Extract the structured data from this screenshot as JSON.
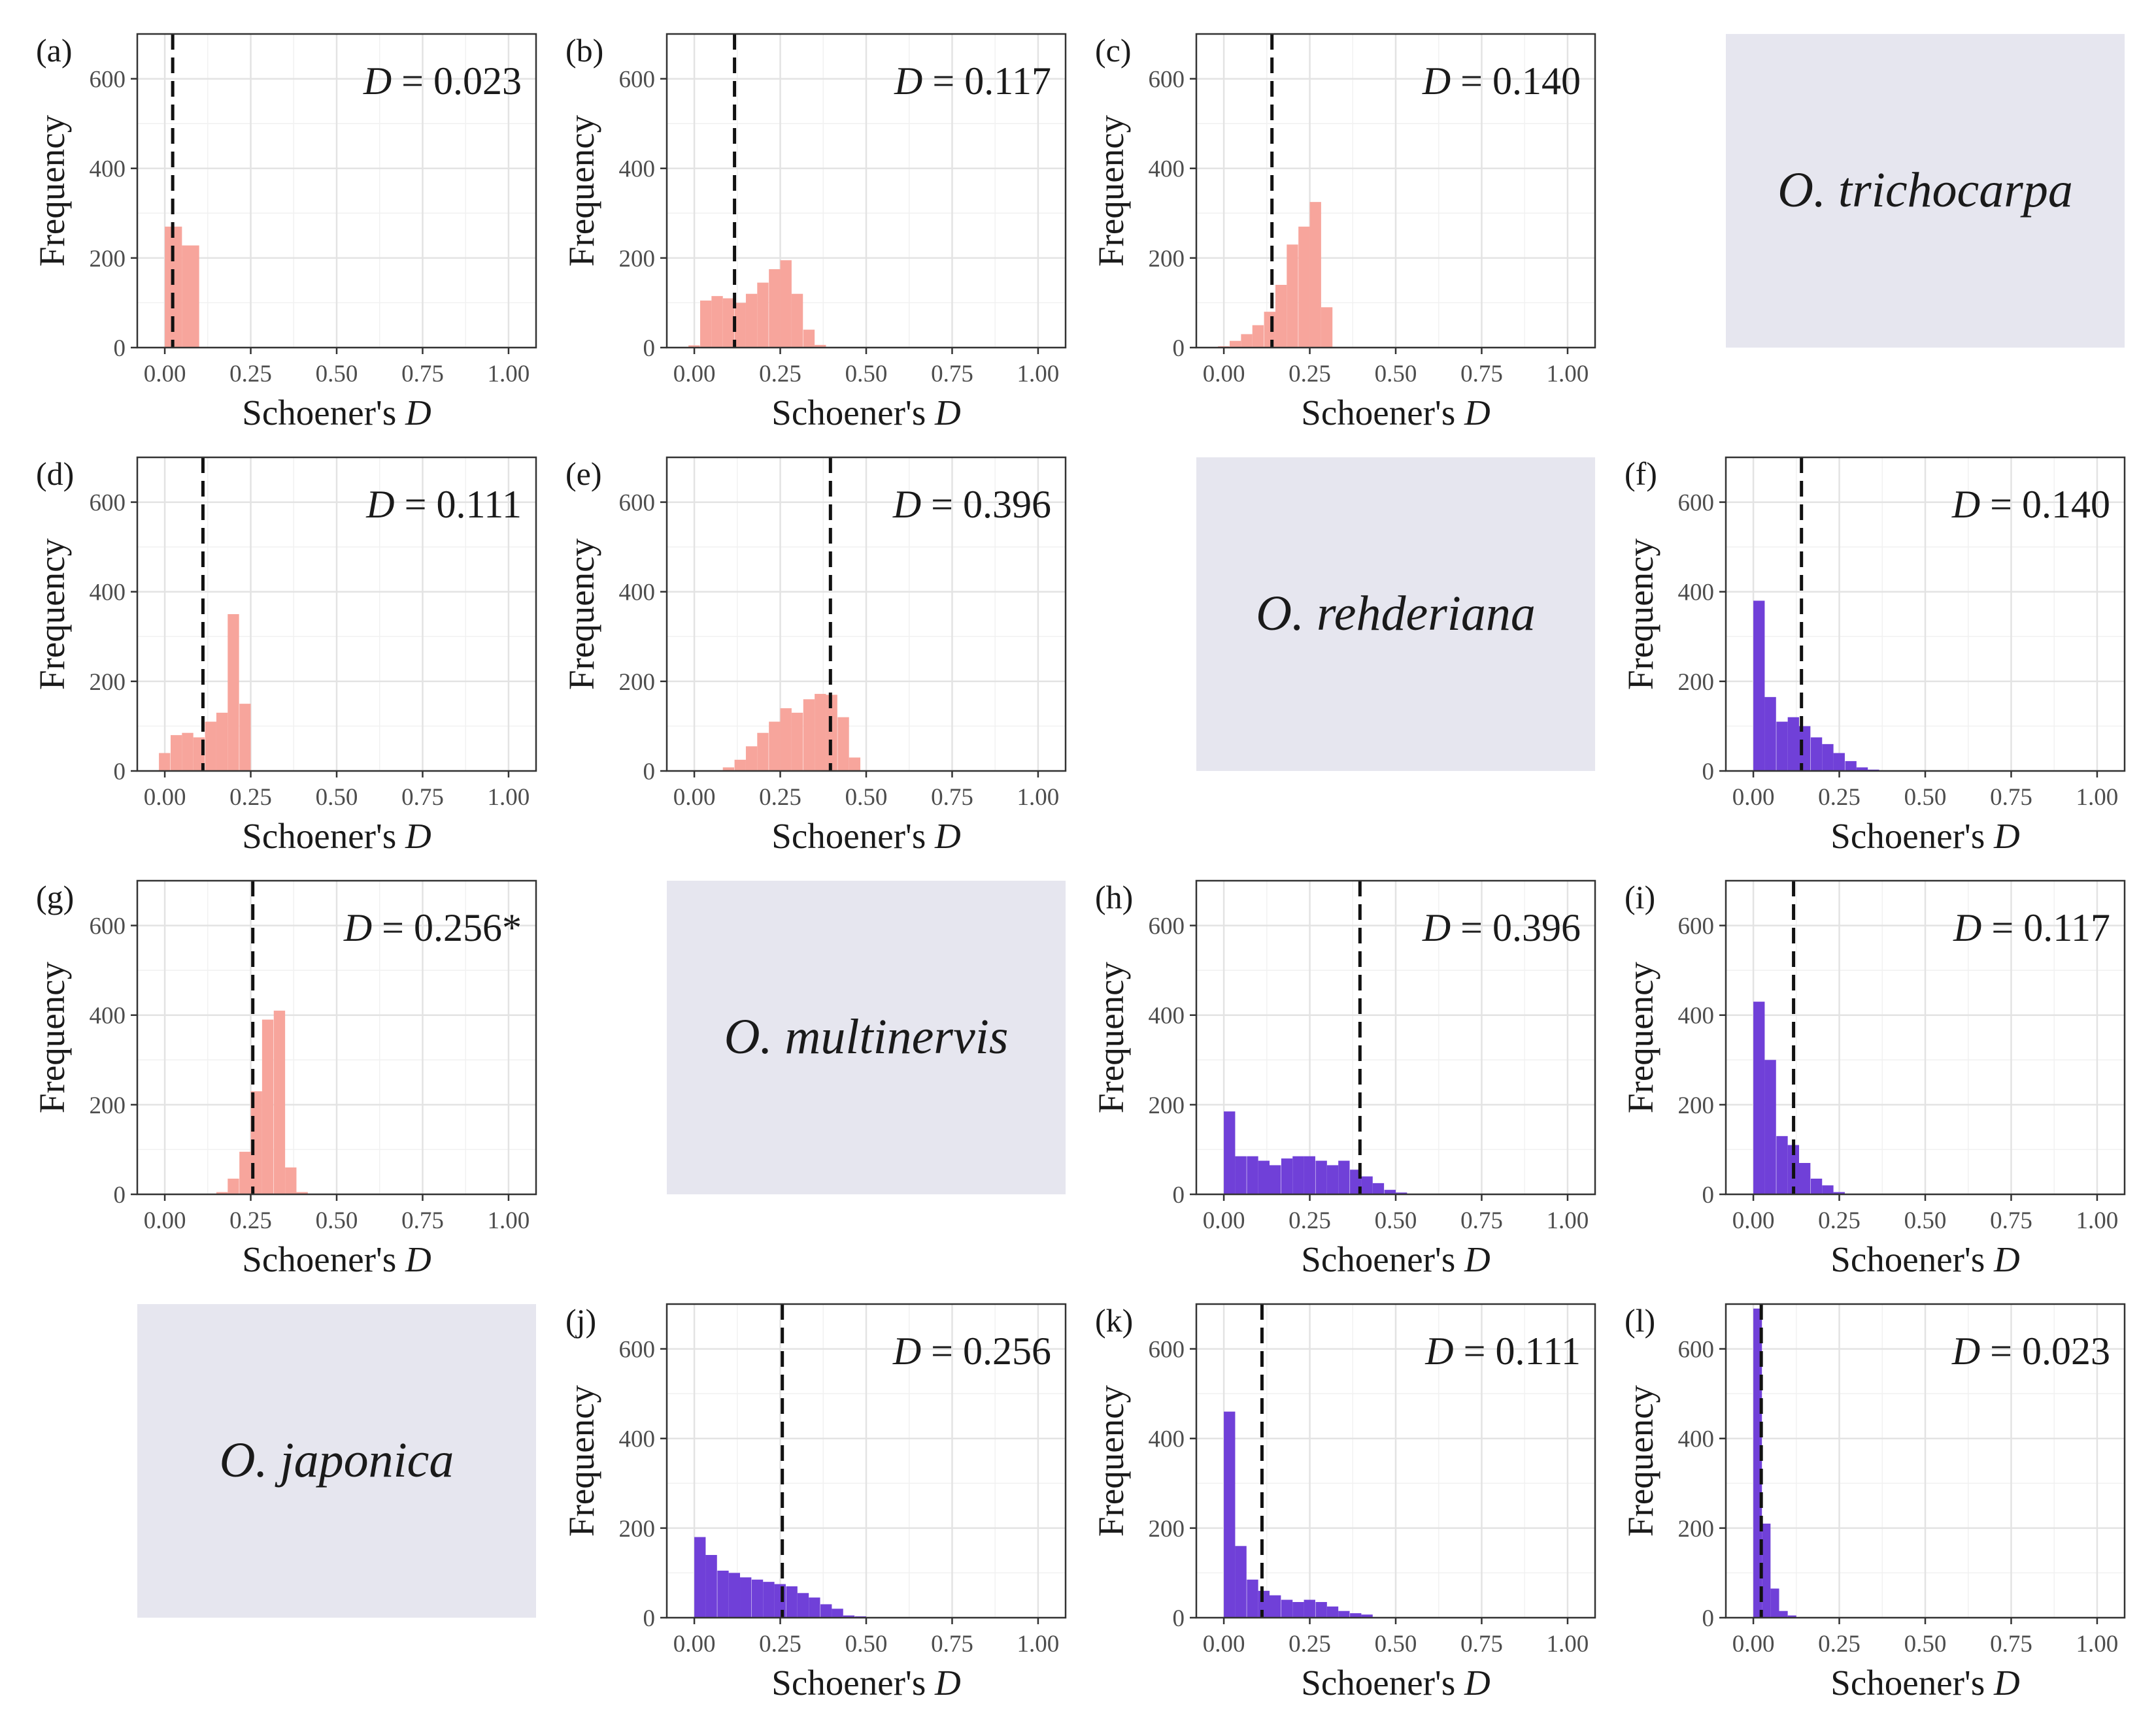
{
  "chart_data": {
    "type": "histogram",
    "layout": "4x4 matrix of pairwise panels; diagonal shows species names",
    "colors": {
      "pink": "#f7a59c",
      "purple": "#7040d8",
      "species_bg": "#e6e6ef"
    },
    "x_ticks": [
      "0.00",
      "0.25",
      "0.50",
      "0.75",
      "1.00"
    ],
    "y_ticks": [
      "0",
      "200",
      "400",
      "600"
    ],
    "xlim": [
      -0.08,
      1.08
    ],
    "ylim": [
      0,
      700
    ],
    "x_label": "Schoener's",
    "x_label_var": "D",
    "y_label": "Frequency",
    "species": [
      {
        "name": "O. trichocarpa",
        "row": 0,
        "col": 3
      },
      {
        "name": "O. rehderiana",
        "row": 1,
        "col": 2
      },
      {
        "name": "O. multinervis",
        "row": 2,
        "col": 1
      },
      {
        "name": "O. japonica",
        "row": 3,
        "col": 0
      }
    ],
    "panels": [
      {
        "label": "(a)",
        "row": 0,
        "col": 0,
        "D_var": "D",
        "D_text": " = 0.023",
        "observed": 0.023,
        "color": "pink",
        "bin_width": 0.05,
        "bins": [
          [
            0.0,
            270
          ],
          [
            0.05,
            228
          ]
        ]
      },
      {
        "label": "(b)",
        "row": 0,
        "col": 1,
        "D_var": "D",
        "D_text": " = 0.117",
        "observed": 0.117,
        "color": "pink",
        "bin_width": 0.033,
        "bins": [
          [
            -0.017,
            5
          ],
          [
            0.017,
            105
          ],
          [
            0.05,
            115
          ],
          [
            0.083,
            110
          ],
          [
            0.117,
            100
          ],
          [
            0.15,
            120
          ],
          [
            0.183,
            145
          ],
          [
            0.217,
            175
          ],
          [
            0.25,
            195
          ],
          [
            0.283,
            120
          ],
          [
            0.317,
            40
          ],
          [
            0.35,
            6
          ]
        ]
      },
      {
        "label": "(c)",
        "row": 0,
        "col": 2,
        "D_var": "D",
        "D_text": " = 0.140",
        "observed": 0.14,
        "color": "pink",
        "bin_width": 0.033,
        "bins": [
          [
            -0.017,
            3
          ],
          [
            0.017,
            15
          ],
          [
            0.05,
            30
          ],
          [
            0.083,
            50
          ],
          [
            0.117,
            80
          ],
          [
            0.15,
            140
          ],
          [
            0.183,
            230
          ],
          [
            0.217,
            270
          ],
          [
            0.25,
            325
          ],
          [
            0.283,
            90
          ]
        ]
      },
      {
        "label": "(d)",
        "row": 1,
        "col": 0,
        "D_var": "D",
        "D_text": " = 0.111",
        "observed": 0.111,
        "color": "pink",
        "bin_width": 0.033,
        "bins": [
          [
            -0.017,
            40
          ],
          [
            0.017,
            80
          ],
          [
            0.05,
            85
          ],
          [
            0.083,
            75
          ],
          [
            0.117,
            110
          ],
          [
            0.15,
            130
          ],
          [
            0.183,
            350
          ],
          [
            0.217,
            150
          ]
        ]
      },
      {
        "label": "(e)",
        "row": 1,
        "col": 1,
        "D_var": "D",
        "D_text": " = 0.396",
        "observed": 0.396,
        "color": "pink",
        "bin_width": 0.033,
        "bins": [
          [
            0.083,
            8
          ],
          [
            0.117,
            25
          ],
          [
            0.15,
            55
          ],
          [
            0.183,
            85
          ],
          [
            0.217,
            110
          ],
          [
            0.25,
            140
          ],
          [
            0.283,
            130
          ],
          [
            0.317,
            160
          ],
          [
            0.35,
            172
          ],
          [
            0.383,
            170
          ],
          [
            0.417,
            120
          ],
          [
            0.45,
            30
          ]
        ]
      },
      {
        "label": "(f)",
        "row": 1,
        "col": 3,
        "D_var": "D",
        "D_text": " = 0.140",
        "observed": 0.14,
        "color": "purple",
        "bin_width": 0.033,
        "bins": [
          [
            0.0,
            380
          ],
          [
            0.033,
            165
          ],
          [
            0.067,
            110
          ],
          [
            0.1,
            120
          ],
          [
            0.133,
            100
          ],
          [
            0.167,
            75
          ],
          [
            0.2,
            60
          ],
          [
            0.233,
            40
          ],
          [
            0.267,
            22
          ],
          [
            0.3,
            8
          ],
          [
            0.333,
            3
          ]
        ]
      },
      {
        "label": "(g)",
        "row": 2,
        "col": 0,
        "D_var": "D",
        "D_text": " = 0.256*",
        "observed": 0.256,
        "color": "pink",
        "bin_width": 0.033,
        "bins": [
          [
            0.15,
            5
          ],
          [
            0.183,
            35
          ],
          [
            0.217,
            95
          ],
          [
            0.25,
            230
          ],
          [
            0.283,
            390
          ],
          [
            0.317,
            410
          ],
          [
            0.35,
            60
          ],
          [
            0.383,
            5
          ]
        ]
      },
      {
        "label": "(h)",
        "row": 2,
        "col": 2,
        "D_var": "D",
        "D_text": " = 0.396",
        "observed": 0.396,
        "color": "purple",
        "bin_width": 0.033,
        "bins": [
          [
            0.0,
            185
          ],
          [
            0.033,
            85
          ],
          [
            0.067,
            85
          ],
          [
            0.1,
            75
          ],
          [
            0.133,
            65
          ],
          [
            0.167,
            80
          ],
          [
            0.2,
            85
          ],
          [
            0.233,
            85
          ],
          [
            0.267,
            75
          ],
          [
            0.3,
            65
          ],
          [
            0.333,
            75
          ],
          [
            0.367,
            55
          ],
          [
            0.4,
            40
          ],
          [
            0.433,
            25
          ],
          [
            0.467,
            10
          ],
          [
            0.5,
            4
          ]
        ]
      },
      {
        "label": "(i)",
        "row": 2,
        "col": 3,
        "D_var": "D",
        "D_text": " = 0.117",
        "observed": 0.117,
        "color": "purple",
        "bin_width": 0.033,
        "bins": [
          [
            0.0,
            430
          ],
          [
            0.033,
            300
          ],
          [
            0.067,
            130
          ],
          [
            0.1,
            110
          ],
          [
            0.133,
            70
          ],
          [
            0.167,
            35
          ],
          [
            0.2,
            20
          ],
          [
            0.233,
            5
          ]
        ]
      },
      {
        "label": "(j)",
        "row": 3,
        "col": 1,
        "D_var": "D",
        "D_text": " = 0.256",
        "observed": 0.256,
        "color": "purple",
        "bin_width": 0.033,
        "bins": [
          [
            0.0,
            180
          ],
          [
            0.033,
            140
          ],
          [
            0.067,
            105
          ],
          [
            0.1,
            100
          ],
          [
            0.133,
            90
          ],
          [
            0.167,
            85
          ],
          [
            0.2,
            80
          ],
          [
            0.233,
            75
          ],
          [
            0.267,
            70
          ],
          [
            0.3,
            55
          ],
          [
            0.333,
            45
          ],
          [
            0.367,
            30
          ],
          [
            0.4,
            20
          ],
          [
            0.433,
            5
          ],
          [
            0.467,
            3
          ]
        ]
      },
      {
        "label": "(k)",
        "row": 3,
        "col": 2,
        "D_var": "D",
        "D_text": " = 0.111",
        "observed": 0.111,
        "color": "purple",
        "bin_width": 0.033,
        "bins": [
          [
            0.0,
            460
          ],
          [
            0.033,
            160
          ],
          [
            0.067,
            85
          ],
          [
            0.1,
            60
          ],
          [
            0.133,
            50
          ],
          [
            0.167,
            40
          ],
          [
            0.2,
            35
          ],
          [
            0.233,
            40
          ],
          [
            0.267,
            35
          ],
          [
            0.3,
            25
          ],
          [
            0.333,
            15
          ],
          [
            0.367,
            10
          ],
          [
            0.4,
            7
          ]
        ]
      },
      {
        "label": "(l)",
        "row": 3,
        "col": 3,
        "D_var": "D",
        "D_text": " = 0.023",
        "observed": 0.023,
        "color": "purple",
        "bin_width": 0.025,
        "bins": [
          [
            0.0,
            690
          ],
          [
            0.025,
            210
          ],
          [
            0.05,
            65
          ],
          [
            0.075,
            15
          ],
          [
            0.1,
            5
          ]
        ]
      }
    ]
  }
}
